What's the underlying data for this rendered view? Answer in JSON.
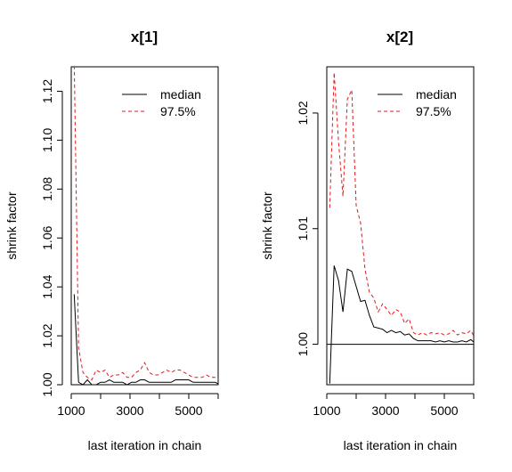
{
  "chart_data": [
    {
      "type": "line",
      "title": "x[1]",
      "xlabel": "last iteration in chain",
      "ylabel": "shrink factor",
      "xlim": [
        1000,
        6000
      ],
      "ylim": [
        1.0,
        1.13
      ],
      "x_ticks": [
        1000,
        3000,
        5000
      ],
      "y_ticks": [
        1.0,
        1.02,
        1.04,
        1.06,
        1.08,
        1.1,
        1.12
      ],
      "reference_line": 1.0,
      "grid": false,
      "legend": {
        "position": "top-right",
        "entries": [
          "median",
          "97.5%"
        ]
      },
      "series": [
        {
          "name": "median",
          "color": "#000000",
          "dash": "solid",
          "x": [
            1100,
            1250,
            1400,
            1550,
            1700,
            1850,
            2000,
            2150,
            2300,
            2450,
            2600,
            2750,
            2900,
            3050,
            3200,
            3350,
            3500,
            3650,
            3800,
            3950,
            4100,
            4250,
            4400,
            4550,
            4700,
            4850,
            5000,
            5150,
            5300,
            5450,
            5600,
            5750,
            5900,
            6050
          ],
          "y": [
            1.037,
            1.001,
            1.0,
            1.002,
            1.0,
            1.0,
            1.001,
            1.001,
            1.002,
            1.001,
            1.001,
            1.001,
            1.0,
            1.001,
            1.001,
            1.002,
            1.002,
            1.001,
            1.001,
            1.001,
            1.001,
            1.001,
            1.001,
            1.002,
            1.002,
            1.002,
            1.002,
            1.001,
            1.001,
            1.001,
            1.001,
            1.001,
            1.001,
            1.0
          ]
        },
        {
          "name": "97.5%",
          "color": "#e41a1c",
          "dash": "dashed",
          "x": [
            1100,
            1250,
            1400,
            1550,
            1700,
            1850,
            2000,
            2150,
            2300,
            2450,
            2600,
            2750,
            2900,
            3050,
            3200,
            3350,
            3500,
            3650,
            3800,
            3950,
            4100,
            4250,
            4400,
            4550,
            4700,
            4850,
            5000,
            5150,
            5300,
            5450,
            5600,
            5750,
            5900,
            6050
          ],
          "y": [
            1.133,
            1.015,
            1.005,
            1.003,
            1.002,
            1.006,
            1.005,
            1.006,
            1.003,
            1.004,
            1.004,
            1.005,
            1.003,
            1.003,
            1.005,
            1.006,
            1.009,
            1.005,
            1.004,
            1.004,
            1.005,
            1.006,
            1.005,
            1.006,
            1.006,
            1.005,
            1.004,
            1.003,
            1.003,
            1.003,
            1.004,
            1.003,
            1.003,
            1.002
          ]
        }
      ]
    },
    {
      "type": "line",
      "title": "x[2]",
      "xlabel": "last iteration in chain",
      "ylabel": "shrink factor",
      "xlim": [
        1000,
        6000
      ],
      "ylim": [
        0.9965,
        1.024
      ],
      "x_ticks": [
        1000,
        3000,
        5000
      ],
      "y_ticks": [
        1.0,
        1.01,
        1.02
      ],
      "reference_line": 1.0,
      "grid": false,
      "legend": {
        "position": "top-right",
        "entries": [
          "median",
          "97.5%"
        ]
      },
      "series": [
        {
          "name": "median",
          "color": "#000000",
          "dash": "solid",
          "x": [
            1100,
            1250,
            1400,
            1550,
            1700,
            1850,
            2000,
            2150,
            2300,
            2450,
            2600,
            2750,
            2900,
            3050,
            3200,
            3350,
            3500,
            3650,
            3800,
            3950,
            4100,
            4250,
            4400,
            4550,
            4700,
            4850,
            5000,
            5150,
            5300,
            5450,
            5600,
            5750,
            5900,
            6050
          ],
          "y": [
            0.9966,
            1.0068,
            1.0055,
            1.0028,
            1.0065,
            1.0063,
            1.005,
            1.0037,
            1.0038,
            1.0025,
            1.0015,
            1.0014,
            1.0013,
            1.001,
            1.0012,
            1.001,
            1.0011,
            1.0008,
            1.0009,
            1.0005,
            1.0003,
            1.0003,
            1.0003,
            1.0003,
            1.0002,
            1.0003,
            1.0002,
            1.0003,
            1.0002,
            1.0002,
            1.0003,
            1.0002,
            1.0004,
            1.0001
          ]
        },
        {
          "name": "97.5%",
          "color": "#e41a1c",
          "dash": "dashed",
          "x": [
            1100,
            1250,
            1400,
            1550,
            1700,
            1850,
            2000,
            2150,
            2300,
            2450,
            2600,
            2750,
            2900,
            3050,
            3200,
            3350,
            3500,
            3650,
            3800,
            3950,
            4100,
            4250,
            4400,
            4550,
            4700,
            4850,
            5000,
            5150,
            5300,
            5450,
            5600,
            5750,
            5900,
            6050
          ],
          "y": [
            1.0118,
            1.0235,
            1.0175,
            1.0128,
            1.0212,
            1.022,
            1.012,
            1.0105,
            1.0065,
            1.0045,
            1.004,
            1.0028,
            1.0035,
            1.003,
            1.0025,
            1.003,
            1.0028,
            1.0018,
            1.0022,
            1.001,
            1.0008,
            1.001,
            1.0008,
            1.001,
            1.0009,
            1.001,
            1.0008,
            1.0009,
            1.0012,
            1.0008,
            1.001,
            1.0009,
            1.0012,
            1.0005
          ]
        }
      ]
    }
  ]
}
